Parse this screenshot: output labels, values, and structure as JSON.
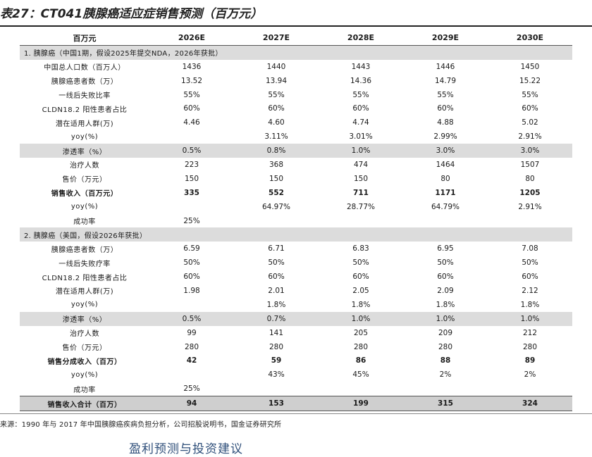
{
  "title": "表27：CT041胰腺癌适应症销售预测（百万元）",
  "header": {
    "unit_label": "百万元",
    "years": [
      "2026E",
      "2027E",
      "2028E",
      "2029E",
      "2030E"
    ]
  },
  "section1": {
    "label": "1.   胰腺癌（中国1期，假设2025年提交NDA，2026年获批）",
    "rows": [
      {
        "label": "中国总人口数（百万人）",
        "values": [
          "1436",
          "1440",
          "1443",
          "1446",
          "1450"
        ]
      },
      {
        "label": "胰腺癌患者数（万）",
        "values": [
          "13.52",
          "13.94",
          "14.36",
          "14.79",
          "15.22"
        ]
      },
      {
        "label": "一线后失败比率",
        "values": [
          "55%",
          "55%",
          "55%",
          "55%",
          "55%"
        ]
      },
      {
        "label": "CLDN18.2 阳性患者占比",
        "values": [
          "60%",
          "60%",
          "60%",
          "60%",
          "60%"
        ]
      },
      {
        "label": "潜在适用人群(万)",
        "values": [
          "4.46",
          "4.60",
          "4.74",
          "4.88",
          "5.02"
        ]
      },
      {
        "label": "yoy(%)",
        "values": [
          "",
          "3.11%",
          "3.01%",
          "2.99%",
          "2.91%"
        ]
      },
      {
        "label": "渗透率（%）",
        "values": [
          "0.5%",
          "0.8%",
          "1.0%",
          "3.0%",
          "3.0%"
        ]
      },
      {
        "label": "治疗人数",
        "values": [
          "223",
          "368",
          "474",
          "1464",
          "1507"
        ]
      },
      {
        "label": "售价（万元）",
        "values": [
          "150",
          "150",
          "150",
          "80",
          "80"
        ]
      },
      {
        "label": "销售收入（百万元）",
        "values": [
          "335",
          "552",
          "711",
          "1171",
          "1205"
        ]
      },
      {
        "label": "yoy(%)",
        "values": [
          "",
          "64.97%",
          "28.77%",
          "64.79%",
          "2.91%"
        ]
      },
      {
        "label": "成功率",
        "values": [
          "25%",
          "",
          "",
          "",
          ""
        ]
      }
    ]
  },
  "section2": {
    "label": "2.   胰腺癌（美国，假设2026年获批）",
    "rows": [
      {
        "label": "胰腺癌患者数（万）",
        "values": [
          "6.59",
          "6.71",
          "6.83",
          "6.95",
          "7.08"
        ]
      },
      {
        "label": "一线后失败疗率",
        "values": [
          "50%",
          "50%",
          "50%",
          "50%",
          "50%"
        ]
      },
      {
        "label": "CLDN18.2 阳性患者占比",
        "values": [
          "60%",
          "60%",
          "60%",
          "60%",
          "60%"
        ]
      },
      {
        "label": "潜在适用人群(万)",
        "values": [
          "1.98",
          "2.01",
          "2.05",
          "2.09",
          "2.12"
        ]
      },
      {
        "label": "yoy(%)",
        "values": [
          "",
          "1.8%",
          "1.8%",
          "1.8%",
          "1.8%"
        ]
      },
      {
        "label": "渗透率（%）",
        "values": [
          "0.5%",
          "0.7%",
          "1.0%",
          "1.0%",
          "1.0%"
        ]
      },
      {
        "label": "治疗人数",
        "values": [
          "99",
          "141",
          "205",
          "209",
          "212"
        ]
      },
      {
        "label": "售价（万元）",
        "values": [
          "280",
          "280",
          "280",
          "280",
          "280"
        ]
      },
      {
        "label": "销售分成收入（百万）",
        "values": [
          "42",
          "59",
          "86",
          "88",
          "89"
        ]
      },
      {
        "label": "yoy(%)",
        "values": [
          "",
          "43%",
          "45%",
          "2%",
          "2%"
        ]
      },
      {
        "label": "成功率",
        "values": [
          "25%",
          "",
          "",
          "",
          ""
        ]
      }
    ]
  },
  "total": {
    "label": "销售收入合计（百万）",
    "values": [
      "94",
      "153",
      "199",
      "315",
      "324"
    ]
  },
  "source": "来源：1990 年与 2017 年中国胰腺癌疾病负担分析，公司招股说明书，国金证券研究所",
  "subheading": "盈利预测与投资建议"
}
